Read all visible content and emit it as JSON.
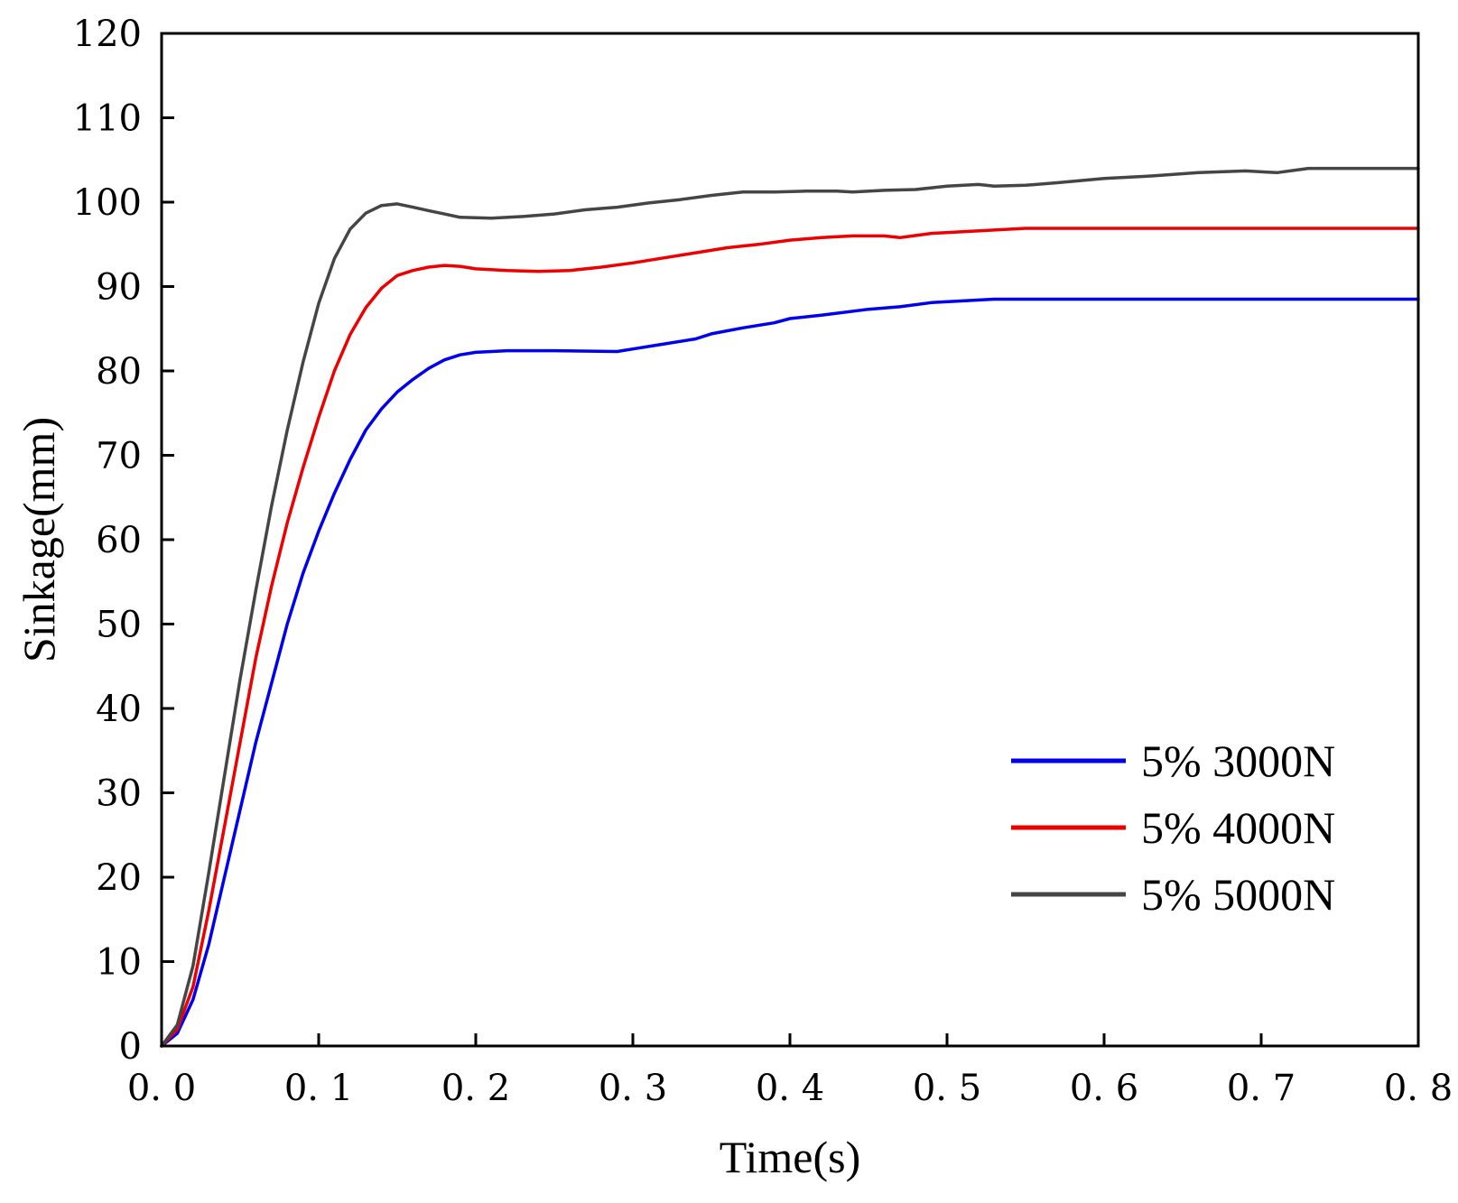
{
  "chart_data": {
    "type": "line",
    "title": "",
    "xlabel": "Time(s)",
    "ylabel": "Sinkage(mm)",
    "xlim": [
      0,
      0.8
    ],
    "ylim": [
      0,
      120
    ],
    "grid": false,
    "legend_position": "bottom-right",
    "x_ticks": [
      "0. 0",
      "0. 1",
      "0. 2",
      "0. 3",
      "0. 4",
      "0. 5",
      "0. 6",
      "0. 7",
      "0. 8"
    ],
    "x_tick_values": [
      0,
      0.1,
      0.2,
      0.3,
      0.4,
      0.5,
      0.6,
      0.7,
      0.8
    ],
    "y_ticks": [
      "0",
      "10",
      "20",
      "30",
      "40",
      "50",
      "60",
      "70",
      "80",
      "90",
      "100",
      "110",
      "120"
    ],
    "y_tick_values": [
      0,
      10,
      20,
      30,
      40,
      50,
      60,
      70,
      80,
      90,
      100,
      110,
      120
    ],
    "series": [
      {
        "name": "5% 3000N",
        "color": "#0000ee",
        "points": [
          [
            0,
            0
          ],
          [
            0.01,
            1.5
          ],
          [
            0.02,
            5.5
          ],
          [
            0.03,
            12
          ],
          [
            0.04,
            20
          ],
          [
            0.05,
            28
          ],
          [
            0.06,
            36
          ],
          [
            0.07,
            43
          ],
          [
            0.08,
            50
          ],
          [
            0.09,
            56
          ],
          [
            0.1,
            61
          ],
          [
            0.11,
            65.5
          ],
          [
            0.12,
            69.5
          ],
          [
            0.13,
            73
          ],
          [
            0.14,
            75.5
          ],
          [
            0.15,
            77.5
          ],
          [
            0.16,
            79
          ],
          [
            0.17,
            80.3
          ],
          [
            0.18,
            81.3
          ],
          [
            0.19,
            81.9
          ],
          [
            0.2,
            82.2
          ],
          [
            0.22,
            82.4
          ],
          [
            0.25,
            82.4
          ],
          [
            0.29,
            82.3
          ],
          [
            0.3,
            82.6
          ],
          [
            0.32,
            83.2
          ],
          [
            0.34,
            83.8
          ],
          [
            0.35,
            84.4
          ],
          [
            0.37,
            85.1
          ],
          [
            0.39,
            85.7
          ],
          [
            0.4,
            86.2
          ],
          [
            0.42,
            86.6
          ],
          [
            0.45,
            87.3
          ],
          [
            0.47,
            87.6
          ],
          [
            0.49,
            88.1
          ],
          [
            0.51,
            88.3
          ],
          [
            0.53,
            88.5
          ],
          [
            0.55,
            88.5
          ],
          [
            0.6,
            88.5
          ],
          [
            0.65,
            88.5
          ],
          [
            0.7,
            88.5
          ],
          [
            0.75,
            88.5
          ],
          [
            0.8,
            88.5
          ]
        ]
      },
      {
        "name": "5% 4000N",
        "color": "#ee0000",
        "points": [
          [
            0,
            0
          ],
          [
            0.01,
            2
          ],
          [
            0.02,
            7
          ],
          [
            0.03,
            16
          ],
          [
            0.04,
            26
          ],
          [
            0.05,
            36
          ],
          [
            0.06,
            46
          ],
          [
            0.07,
            54.5
          ],
          [
            0.08,
            62
          ],
          [
            0.09,
            68.5
          ],
          [
            0.1,
            74.5
          ],
          [
            0.11,
            80
          ],
          [
            0.12,
            84.3
          ],
          [
            0.13,
            87.5
          ],
          [
            0.14,
            89.8
          ],
          [
            0.15,
            91.3
          ],
          [
            0.16,
            91.9
          ],
          [
            0.17,
            92.3
          ],
          [
            0.18,
            92.5
          ],
          [
            0.19,
            92.4
          ],
          [
            0.2,
            92.1
          ],
          [
            0.22,
            91.9
          ],
          [
            0.24,
            91.8
          ],
          [
            0.26,
            91.9
          ],
          [
            0.28,
            92.3
          ],
          [
            0.3,
            92.8
          ],
          [
            0.32,
            93.4
          ],
          [
            0.34,
            94
          ],
          [
            0.36,
            94.6
          ],
          [
            0.38,
            95
          ],
          [
            0.4,
            95.5
          ],
          [
            0.42,
            95.8
          ],
          [
            0.44,
            96
          ],
          [
            0.46,
            96
          ],
          [
            0.47,
            95.8
          ],
          [
            0.49,
            96.3
          ],
          [
            0.51,
            96.5
          ],
          [
            0.53,
            96.7
          ],
          [
            0.55,
            96.9
          ],
          [
            0.6,
            96.9
          ],
          [
            0.65,
            96.9
          ],
          [
            0.7,
            96.9
          ],
          [
            0.75,
            96.9
          ],
          [
            0.8,
            96.9
          ]
        ]
      },
      {
        "name": "5% 5000N",
        "color": "#454545",
        "points": [
          [
            0,
            0
          ],
          [
            0.01,
            2.5
          ],
          [
            0.02,
            9.5
          ],
          [
            0.03,
            20.5
          ],
          [
            0.04,
            32
          ],
          [
            0.05,
            43.5
          ],
          [
            0.06,
            54
          ],
          [
            0.07,
            64
          ],
          [
            0.08,
            73
          ],
          [
            0.09,
            81
          ],
          [
            0.1,
            88
          ],
          [
            0.11,
            93.3
          ],
          [
            0.12,
            96.8
          ],
          [
            0.13,
            98.7
          ],
          [
            0.14,
            99.6
          ],
          [
            0.15,
            99.8
          ],
          [
            0.16,
            99.4
          ],
          [
            0.17,
            99
          ],
          [
            0.18,
            98.6
          ],
          [
            0.19,
            98.2
          ],
          [
            0.21,
            98.1
          ],
          [
            0.23,
            98.3
          ],
          [
            0.25,
            98.6
          ],
          [
            0.27,
            99.1
          ],
          [
            0.29,
            99.4
          ],
          [
            0.31,
            99.9
          ],
          [
            0.33,
            100.3
          ],
          [
            0.35,
            100.8
          ],
          [
            0.37,
            101.2
          ],
          [
            0.39,
            101.2
          ],
          [
            0.41,
            101.3
          ],
          [
            0.43,
            101.3
          ],
          [
            0.44,
            101.2
          ],
          [
            0.46,
            101.4
          ],
          [
            0.48,
            101.5
          ],
          [
            0.5,
            101.9
          ],
          [
            0.52,
            102.1
          ],
          [
            0.53,
            101.9
          ],
          [
            0.55,
            102
          ],
          [
            0.57,
            102.3
          ],
          [
            0.6,
            102.8
          ],
          [
            0.63,
            103.1
          ],
          [
            0.66,
            103.5
          ],
          [
            0.69,
            103.7
          ],
          [
            0.71,
            103.5
          ],
          [
            0.73,
            104
          ],
          [
            0.75,
            104
          ],
          [
            0.78,
            104
          ],
          [
            0.8,
            104
          ]
        ]
      }
    ]
  }
}
